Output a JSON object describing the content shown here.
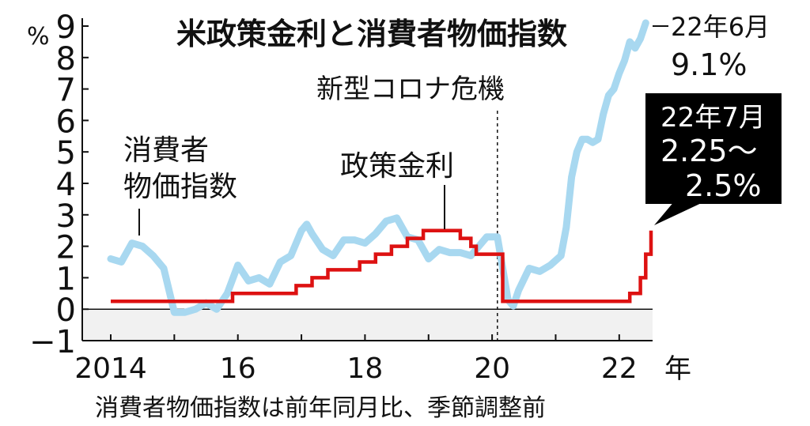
{
  "chart_data": {
    "type": "line",
    "title": "米政策金利と消費者物価指数",
    "y_unit": "%",
    "x_unit": "年",
    "xlabel": "",
    "ylabel": "",
    "ylim": [
      -1,
      9
    ],
    "y_ticks": [
      "−1",
      "0",
      "1",
      "2",
      "3",
      "4",
      "5",
      "6",
      "7",
      "8",
      "9"
    ],
    "x_ticks": [
      {
        "value": "2014-01",
        "label": "2014"
      },
      {
        "value": "2016-01",
        "label": "16"
      },
      {
        "value": "2018-01",
        "label": "18"
      },
      {
        "value": "2020-01",
        "label": "20"
      },
      {
        "value": "2022-01",
        "label": "22"
      }
    ],
    "xlim": [
      "2014-01",
      "2022-07"
    ],
    "grid": false,
    "colors": {
      "cpi": "#a8d8f0",
      "policy_rate": "#dd1111",
      "negative_band": "#f1f1f1"
    },
    "series": [
      {
        "name": "消費者物価指数",
        "label_lines": [
          "消費者",
          "物価指数"
        ],
        "color": "#a8d8f0",
        "x": [
          "2014-01",
          "2014-03",
          "2014-05",
          "2014-07",
          "2014-09",
          "2014-11",
          "2015-01",
          "2015-03",
          "2015-05",
          "2015-07",
          "2015-09",
          "2015-11",
          "2016-01",
          "2016-03",
          "2016-05",
          "2016-07",
          "2016-09",
          "2016-11",
          "2017-01",
          "2017-02",
          "2017-03",
          "2017-05",
          "2017-07",
          "2017-09",
          "2017-11",
          "2018-01",
          "2018-03",
          "2018-05",
          "2018-07",
          "2018-09",
          "2018-11",
          "2019-01",
          "2019-03",
          "2019-05",
          "2019-07",
          "2019-09",
          "2019-11",
          "2019-12",
          "2020-02",
          "2020-04",
          "2020-05",
          "2020-06",
          "2020-08",
          "2020-10",
          "2020-12",
          "2021-02",
          "2021-03",
          "2021-04",
          "2021-05",
          "2021-06",
          "2021-07",
          "2021-08",
          "2021-09",
          "2021-10",
          "2021-11",
          "2021-12",
          "2022-01",
          "2022-02",
          "2022-03",
          "2022-04",
          "2022-05",
          "2022-06"
        ],
        "values": [
          1.6,
          1.5,
          2.1,
          2.0,
          1.7,
          1.3,
          -0.1,
          -0.1,
          0.0,
          0.2,
          0.0,
          0.5,
          1.4,
          0.9,
          1.0,
          0.8,
          1.5,
          1.7,
          2.5,
          2.7,
          2.4,
          1.9,
          1.7,
          2.2,
          2.2,
          2.1,
          2.4,
          2.8,
          2.9,
          2.3,
          2.2,
          1.6,
          1.9,
          1.8,
          1.8,
          1.7,
          2.1,
          2.3,
          2.3,
          0.3,
          0.1,
          0.6,
          1.3,
          1.2,
          1.4,
          1.7,
          2.6,
          4.2,
          5.0,
          5.4,
          5.4,
          5.3,
          5.4,
          6.2,
          6.8,
          7.0,
          7.5,
          7.9,
          8.5,
          8.3,
          8.6,
          9.1
        ]
      },
      {
        "name": "政策金利",
        "label": "政策金利",
        "color": "#dd1111",
        "x": [
          "2014-01",
          "2015-12",
          "2016-12",
          "2017-03",
          "2017-06",
          "2017-12",
          "2018-03",
          "2018-06",
          "2018-09",
          "2018-12",
          "2019-07",
          "2019-09",
          "2019-10",
          "2020-03",
          "2022-03",
          "2022-05",
          "2022-06",
          "2022-07"
        ],
        "values": [
          0.25,
          0.5,
          0.75,
          1.0,
          1.25,
          1.5,
          1.75,
          2.0,
          2.25,
          2.5,
          2.25,
          2.0,
          1.75,
          0.25,
          0.5,
          1.0,
          1.75,
          2.5
        ]
      }
    ],
    "annotations": [
      {
        "text": "新型コロナ危機",
        "x": "2020-02"
      },
      {
        "text_lines": [
          "22年6月",
          "9.1%"
        ],
        "target_series": "消費者物価指数",
        "x": "2022-06"
      },
      {
        "text_lines": [
          "22年7月",
          "2.25〜",
          "2.5%"
        ],
        "target_series": "政策金利",
        "x": "2022-07"
      }
    ],
    "footnote": "消費者物価指数は前年同月比、季節調整前"
  }
}
